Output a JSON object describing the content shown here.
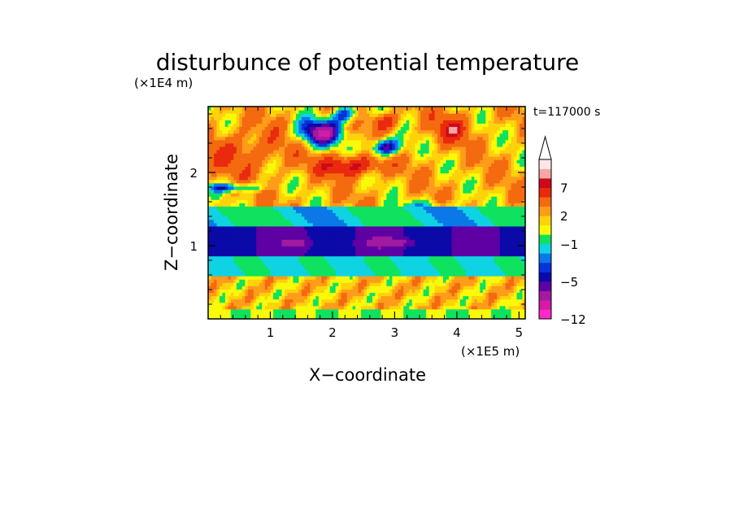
{
  "chart_data": {
    "type": "heatmap",
    "title": "disturbunce of potential temperature",
    "xlabel": "X−coordinate",
    "ylabel": "Z−coordinate",
    "x_unit": "(×1E5 m)",
    "y_unit": "(×1E4 m)",
    "time_label": "t=117000 s",
    "xlim": [
      0,
      5.1
    ],
    "ylim": [
      0,
      2.9
    ],
    "x_ticks": [
      1,
      2,
      3,
      4,
      5
    ],
    "y_ticks": [
      1,
      2
    ],
    "colorbar": {
      "levels_from_bottom": [
        -12,
        -10,
        -8,
        -6,
        -5,
        -4,
        -3,
        -2,
        -1,
        0,
        1,
        2,
        3,
        5,
        7,
        8,
        9,
        10
      ],
      "colors_from_bottom": [
        "#ff29c9",
        "#d61aa6",
        "#a21aa0",
        "#5e00a3",
        "#0b0aa8",
        "#0433dc",
        "#0b78e7",
        "#0fd3e3",
        "#0ee25f",
        "#f9f90a",
        "#ffd20a",
        "#ff9c1a",
        "#f46a0f",
        "#ea2a0e",
        "#cc0a1a",
        "#f8a7a4",
        "#ffe6e6"
      ],
      "labels": [
        {
          "text": "−12",
          "value": -12
        },
        {
          "text": "−5",
          "value": -5
        },
        {
          "text": "−1",
          "value": -1
        },
        {
          "text": "2",
          "value": 2
        },
        {
          "text": "7",
          "value": 7
        }
      ],
      "extend": "max"
    },
    "field": {
      "nx": 112,
      "nz": 64,
      "description_layers": [
        {
          "z": [
            0.0,
            0.14
          ],
          "value": 0.4
        },
        {
          "z": [
            0.14,
            0.6
          ],
          "value": 1.2
        },
        {
          "z": [
            0.6,
            0.85
          ],
          "value": -1.5
        },
        {
          "z": [
            0.85,
            1.25
          ],
          "value": -5.0
        },
        {
          "z": [
            1.25,
            1.55
          ],
          "value": -1.2
        },
        {
          "z": [
            1.55,
            2.9
          ],
          "value": 2.0
        }
      ]
    }
  }
}
